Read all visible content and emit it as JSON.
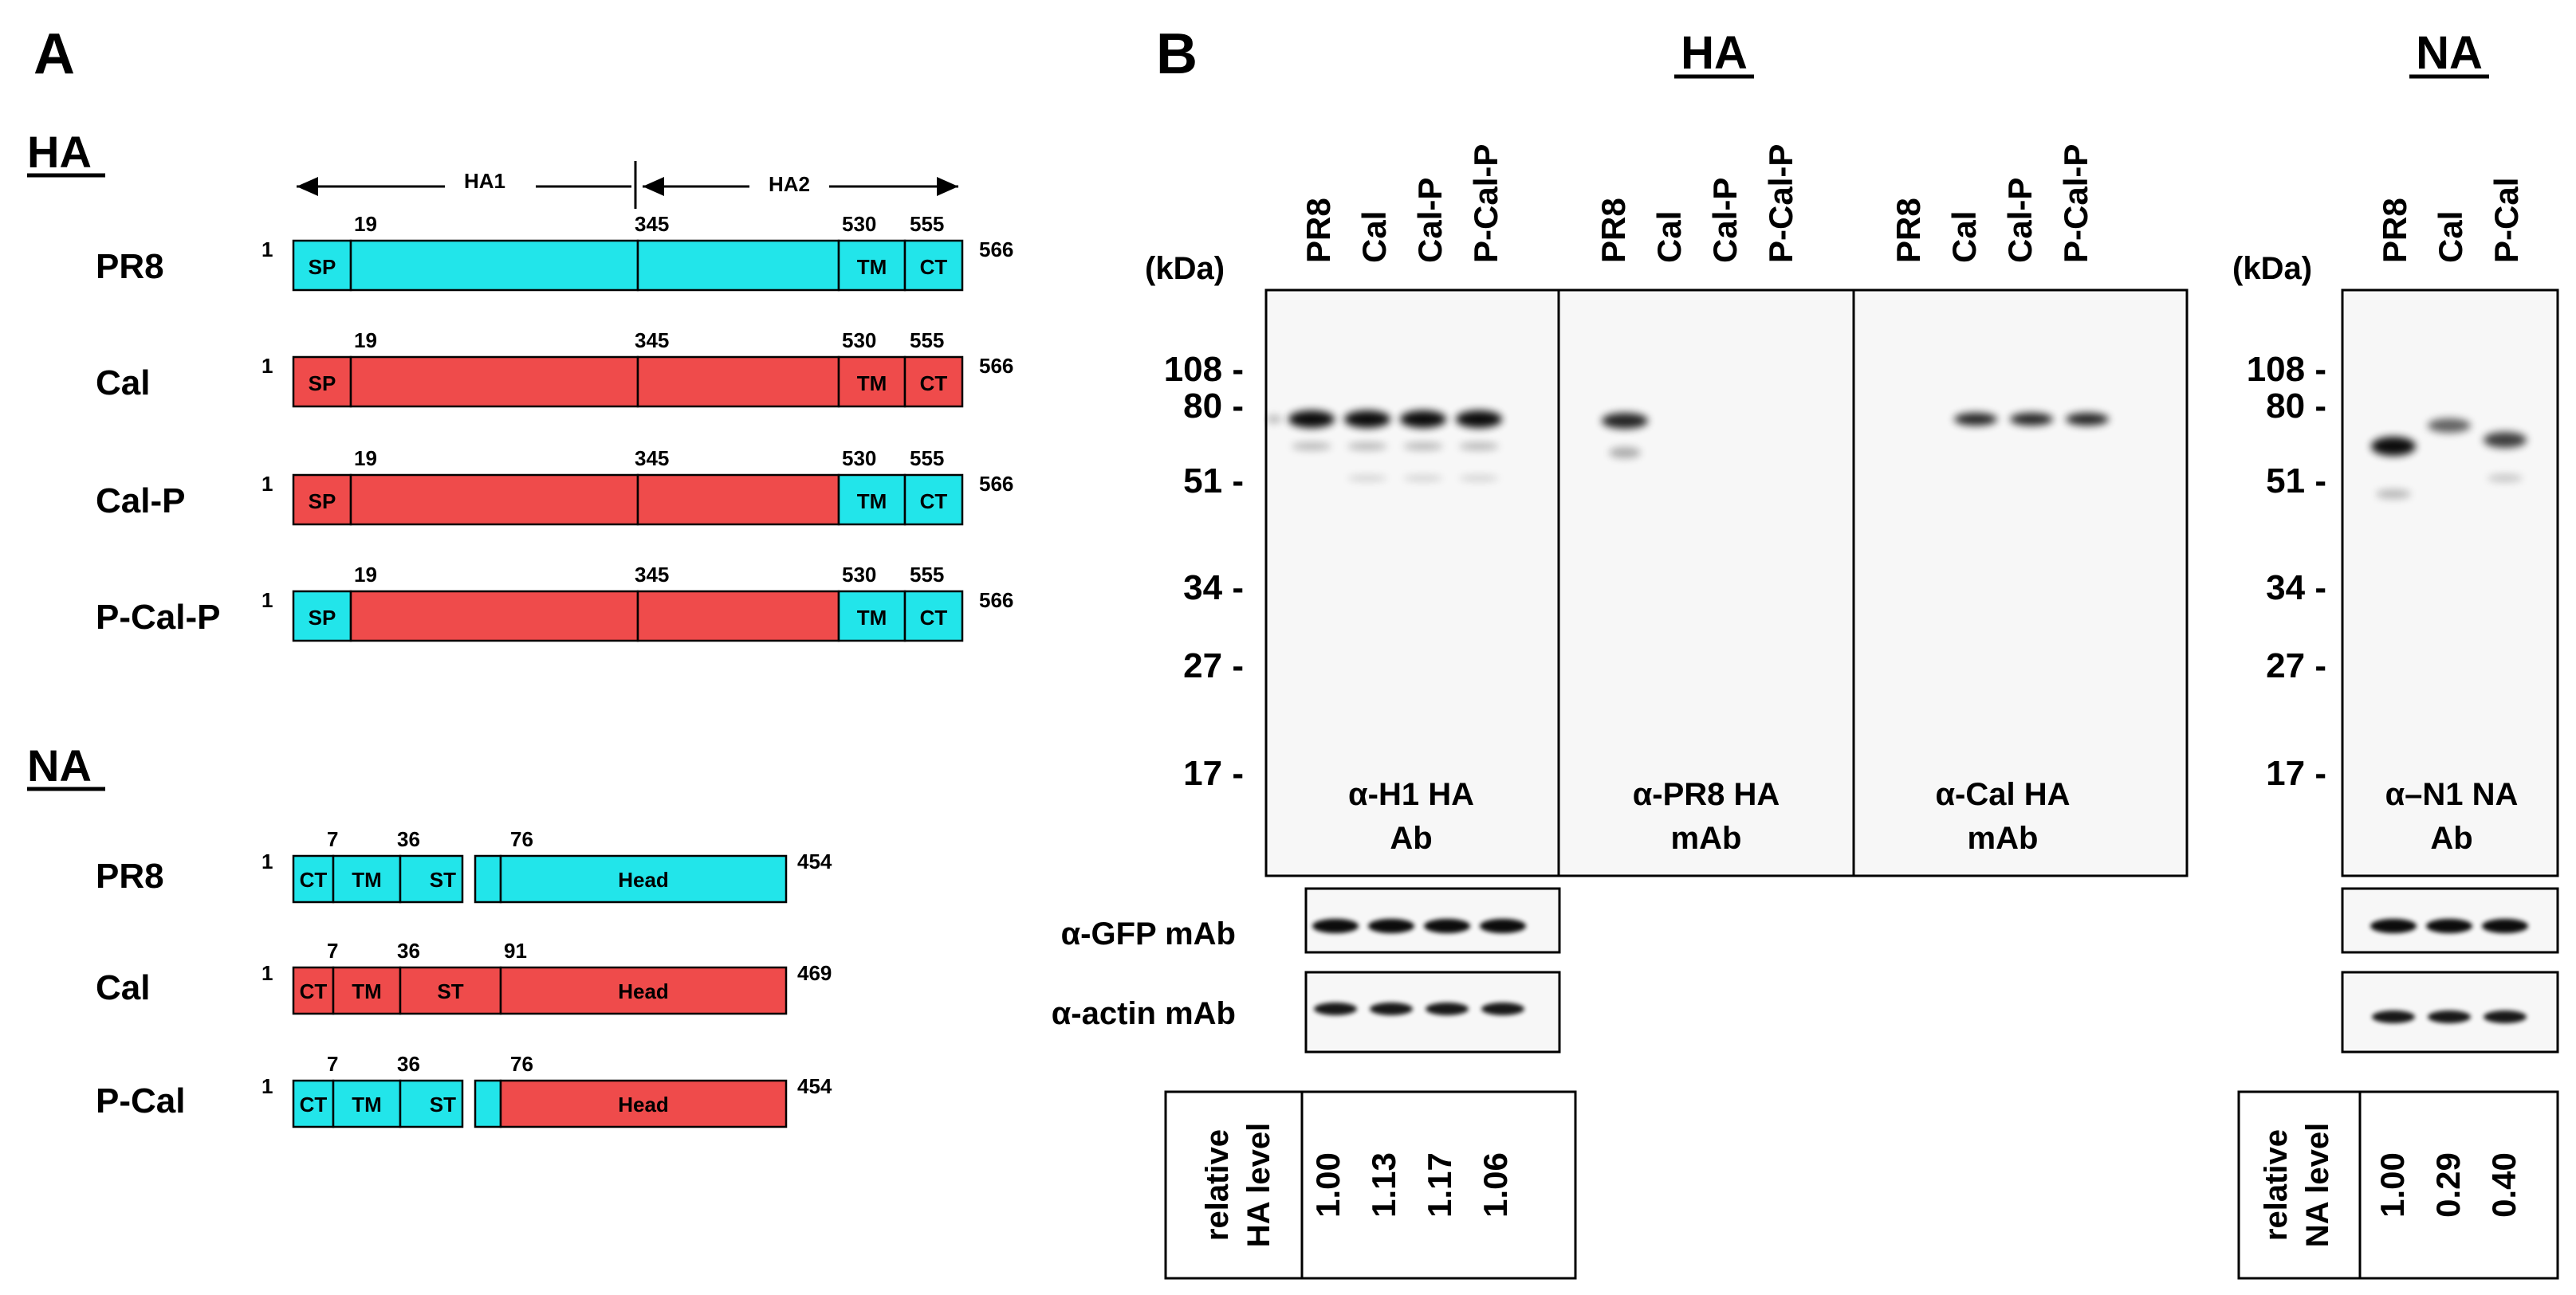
{
  "panel_a": {
    "letter": "A",
    "ha": {
      "heading": "HA",
      "region_ha1": "HA1",
      "region_ha2": "HA2",
      "constructs": [
        {
          "name": "PR8",
          "start": "1",
          "end": "566",
          "sp": "SP",
          "tm": "TM",
          "ct": "CT",
          "pos19": "19",
          "pos345": "345",
          "pos530": "530",
          "pos555": "555",
          "colors": {
            "sp": "#22e5ea",
            "ha1": "#22e5ea",
            "ha2": "#22e5ea",
            "tm": "#22e5ea",
            "ct": "#22e5ea"
          }
        },
        {
          "name": "Cal",
          "start": "1",
          "end": "566",
          "sp": "SP",
          "tm": "TM",
          "ct": "CT",
          "pos19": "19",
          "pos345": "345",
          "pos530": "530",
          "pos555": "555",
          "colors": {
            "sp": "#ef4b4b",
            "ha1": "#ef4b4b",
            "ha2": "#ef4b4b",
            "tm": "#ef4b4b",
            "ct": "#ef4b4b"
          }
        },
        {
          "name": "Cal-P",
          "start": "1",
          "end": "566",
          "sp": "SP",
          "tm": "TM",
          "ct": "CT",
          "pos19": "19",
          "pos345": "345",
          "pos530": "530",
          "pos555": "555",
          "colors": {
            "sp": "#ef4b4b",
            "ha1": "#ef4b4b",
            "ha2": "#ef4b4b",
            "tm": "#22e5ea",
            "ct": "#22e5ea"
          }
        },
        {
          "name": "P-Cal-P",
          "start": "1",
          "end": "566",
          "sp": "SP",
          "tm": "TM",
          "ct": "CT",
          "pos19": "19",
          "pos345": "345",
          "pos530": "530",
          "pos555": "555",
          "colors": {
            "sp": "#22e5ea",
            "ha1": "#ef4b4b",
            "ha2": "#ef4b4b",
            "tm": "#22e5ea",
            "ct": "#22e5ea"
          }
        }
      ]
    },
    "na": {
      "heading": "NA",
      "constructs": [
        {
          "name": "PR8",
          "start": "1",
          "end": "454",
          "ct": "CT",
          "tm": "TM",
          "st": "ST",
          "head": "Head",
          "pos7": "7",
          "pos36": "36",
          "posHead": "76",
          "stalk_deleted": true,
          "colors": {
            "ct": "#22e5ea",
            "tm": "#22e5ea",
            "st": "#22e5ea",
            "mid": "#22e5ea",
            "head": "#22e5ea"
          }
        },
        {
          "name": "Cal",
          "start": "1",
          "end": "469",
          "ct": "CT",
          "tm": "TM",
          "st": "ST",
          "head": "Head",
          "pos7": "7",
          "pos36": "36",
          "posHead": "91",
          "stalk_deleted": false,
          "colors": {
            "ct": "#ef4b4b",
            "tm": "#ef4b4b",
            "st": "#ef4b4b",
            "mid": "#ef4b4b",
            "head": "#ef4b4b"
          }
        },
        {
          "name": "P-Cal",
          "start": "1",
          "end": "454",
          "ct": "CT",
          "tm": "TM",
          "st": "ST",
          "head": "Head",
          "pos7": "7",
          "pos36": "36",
          "posHead": "76",
          "stalk_deleted": true,
          "colors": {
            "ct": "#22e5ea",
            "tm": "#22e5ea",
            "st": "#22e5ea",
            "mid": "#22e5ea",
            "head": "#ef4b4b"
          }
        }
      ]
    }
  },
  "panel_b": {
    "letter": "B",
    "ha_section": {
      "title": "HA",
      "kda_label": "(kDa)",
      "markers": [
        "108 -",
        "80 -",
        "51 -",
        "34 -",
        "27 -",
        "17 -"
      ],
      "blots": [
        {
          "lanes": [
            "PR8",
            "Cal",
            "Cal-P",
            "P-Cal-P"
          ],
          "antibody_line1": "α-H1 HA",
          "antibody_line2": "Ab"
        },
        {
          "lanes": [
            "PR8",
            "Cal",
            "Cal-P",
            "P-Cal-P"
          ],
          "antibody_line1": "α-PR8 HA",
          "antibody_line2": "mAb"
        },
        {
          "lanes": [
            "PR8",
            "Cal",
            "Cal-P",
            "P-Cal-P"
          ],
          "antibody_line1": "α-Cal HA",
          "antibody_line2": "mAb"
        }
      ],
      "controls": [
        "α-GFP mAb",
        "α-actin mAb"
      ],
      "quant": {
        "label_line1": "relative",
        "label_line2": "HA level",
        "values": [
          "1.00",
          "1.13",
          "1.17",
          "1.06"
        ]
      }
    },
    "na_section": {
      "title": "NA",
      "kda_label": "(kDa)",
      "markers": [
        "108 -",
        "80 -",
        "51 -",
        "34 -",
        "27 -",
        "17 -"
      ],
      "lanes": [
        "PR8",
        "Cal",
        "P-Cal"
      ],
      "antibody_line1": "α–N1 NA",
      "antibody_line2": "Ab",
      "quant": {
        "label_line1": "relative",
        "label_line2": "NA level",
        "values": [
          "1.00",
          "0.29",
          "0.40"
        ]
      }
    }
  }
}
